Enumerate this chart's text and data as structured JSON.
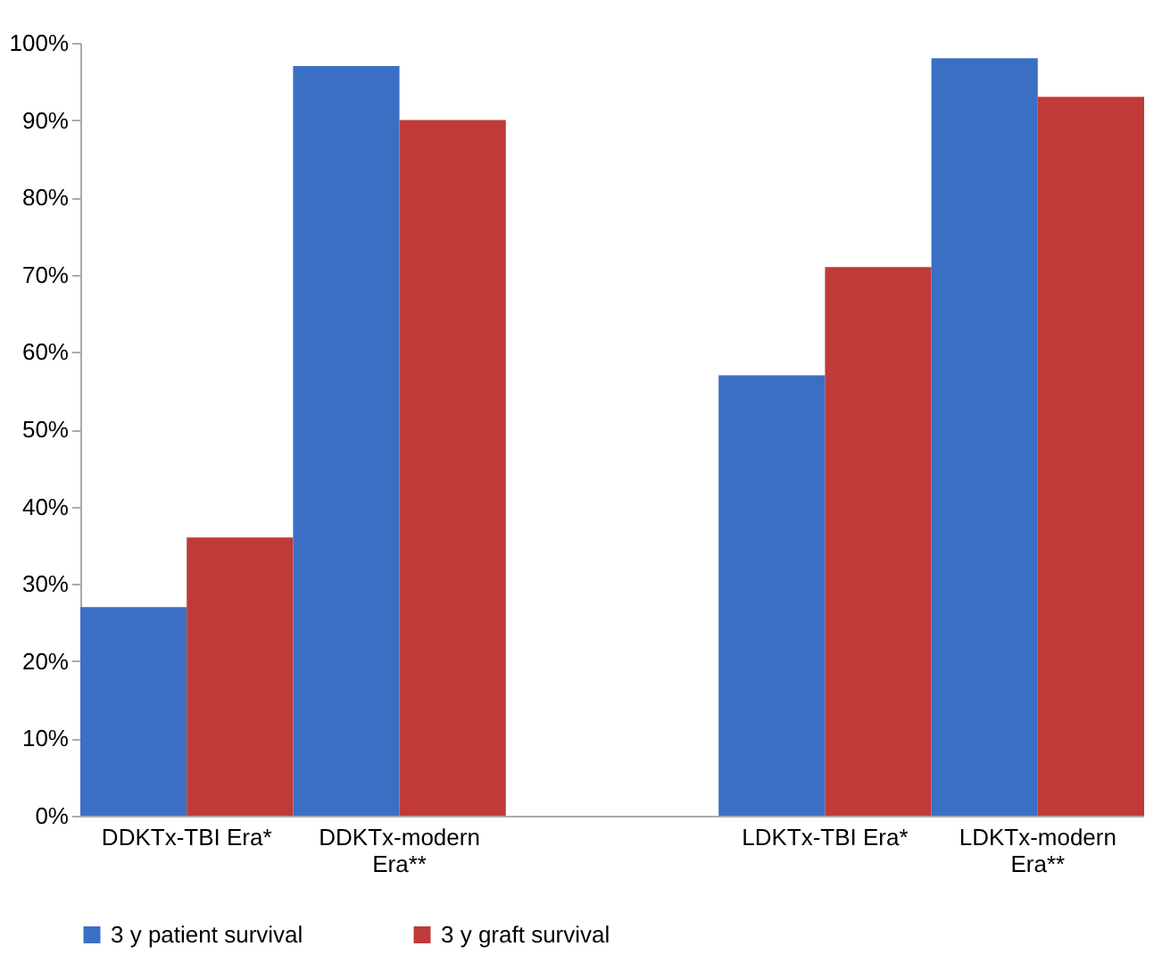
{
  "chart_data": {
    "type": "bar",
    "categories": [
      "DDKTx-TBI Era*",
      "DDKTx-modern Era**",
      null,
      "LDKTx-TBI Era*",
      "LDKTx-modern Era**"
    ],
    "series": [
      {
        "name": "3 y patient survival",
        "color": "#3b6fc4",
        "values": [
          27,
          97,
          null,
          57,
          98
        ]
      },
      {
        "name": "3 y graft survival",
        "color": "#c03a3a",
        "values": [
          36,
          90,
          null,
          71,
          93
        ]
      }
    ],
    "ylim": [
      0,
      100
    ],
    "yticks": [
      {
        "value": 0,
        "label": "0%"
      },
      {
        "value": 10,
        "label": "10%"
      },
      {
        "value": 20,
        "label": "20%"
      },
      {
        "value": 30,
        "label": "30%"
      },
      {
        "value": 40,
        "label": "40%"
      },
      {
        "value": 50,
        "label": "50%"
      },
      {
        "value": 60,
        "label": "60%"
      },
      {
        "value": 70,
        "label": "70%"
      },
      {
        "value": 80,
        "label": "80%"
      },
      {
        "value": 90,
        "label": "90%"
      },
      {
        "value": 100,
        "label": "100%"
      }
    ],
    "grid": false,
    "legend": "bottom"
  }
}
